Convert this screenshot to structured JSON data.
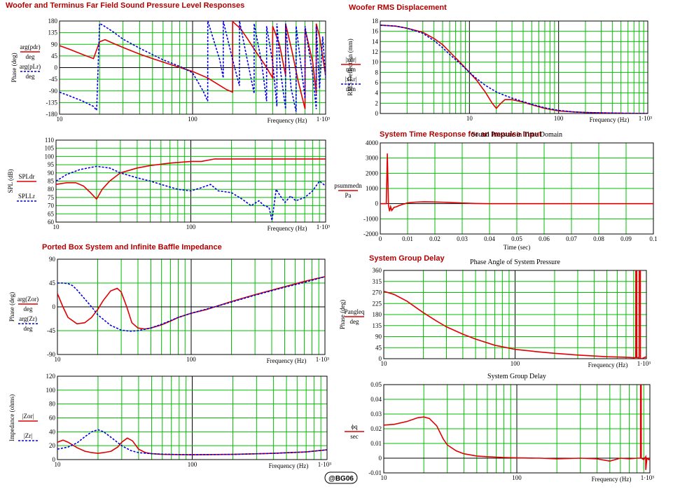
{
  "section_titles": {
    "spl": "Woofer and Terminus Far Field Sound Pressure Level Responses",
    "rms": "Woofer RMS Displacement",
    "time": "System Time Response for an Impulse Input",
    "impedance": "Ported Box System and Infinite Baffle Impedance",
    "delay": "System Group Delay"
  },
  "watermark": "@BG06",
  "colors": {
    "grid": "#00c000",
    "series_a": "#e00000",
    "series_b": "#0000e0",
    "title": "#b30000"
  },
  "chart_data": [
    {
      "id": "phase_spl",
      "type": "line",
      "xscale": "log",
      "xlim": [
        10,
        1000
      ],
      "ylim": [
        -180,
        180
      ],
      "xticks": [
        10,
        100,
        1000
      ],
      "xtick_labels": [
        "10",
        "100",
        "1·10³"
      ],
      "yticks": [
        -180,
        -135,
        -90,
        -45,
        0,
        45,
        90,
        135,
        180
      ],
      "xlabel": "Frequency (Hz)",
      "ylabel": "Phase (deg)",
      "legend": [
        {
          "num": "arg(pdr)",
          "den": "deg"
        },
        {
          "num": "arg(pLr)",
          "den": "deg"
        }
      ],
      "series": [
        {
          "x": [
            10,
            12,
            15,
            18,
            20,
            22,
            25,
            30,
            40,
            50,
            70,
            100,
            130,
            150,
            180,
            200,
            200.1,
            230,
            260,
            300,
            350,
            400,
            400.1,
            450,
            500,
            500.1,
            560,
            620,
            700,
            700.1,
            800,
            850,
            850.1,
            900,
            950,
            1000
          ],
          "y": [
            85,
            70,
            50,
            35,
            100,
            108,
            95,
            78,
            52,
            35,
            10,
            -15,
            -40,
            -60,
            -85,
            -95,
            178,
            150,
            110,
            60,
            10,
            -40,
            160,
            90,
            -30,
            170,
            60,
            -50,
            -160,
            150,
            20,
            -100,
            170,
            120,
            40,
            -30
          ]
        },
        {
          "x": [
            10,
            12,
            15,
            18,
            19,
            20,
            21,
            25,
            30,
            40,
            60,
            80,
            100,
            120,
            130,
            130.1,
            160,
            170,
            170.1,
            200,
            225,
            225.1,
            260,
            290,
            290.1,
            330,
            360,
            360.1,
            400,
            430,
            430.1,
            460,
            500,
            500.1,
            550,
            600,
            600.1,
            700,
            700.1,
            800,
            850,
            850.1,
            900,
            950,
            1000
          ],
          "y": [
            -95,
            -110,
            -130,
            -150,
            -165,
            170,
            165,
            140,
            110,
            75,
            30,
            5,
            -20,
            -90,
            -130,
            180,
            30,
            -40,
            180,
            30,
            -70,
            180,
            20,
            -100,
            170,
            20,
            -130,
            160,
            20,
            -150,
            170,
            -20,
            -160,
            170,
            -80,
            -170,
            160,
            -120,
            160,
            -30,
            -160,
            160,
            -80,
            120,
            -40
          ]
        }
      ]
    },
    {
      "id": "spl_db",
      "type": "line",
      "xscale": "log",
      "xlim": [
        10,
        1000
      ],
      "ylim": [
        60,
        110
      ],
      "xticks": [
        10,
        100,
        1000
      ],
      "xtick_labels": [
        "10",
        "100",
        "1·10³"
      ],
      "yticks": [
        60,
        65,
        70,
        75,
        80,
        85,
        90,
        95,
        100,
        105,
        110
      ],
      "xlabel": "Frequency (Hz)",
      "ylabel": "SPL (dB)",
      "legend": [
        {
          "num": "SPLdr",
          "den": ""
        },
        {
          "num": "SPLLr",
          "den": ""
        }
      ],
      "series": [
        {
          "x": [
            10,
            12,
            14,
            16,
            18,
            20,
            22,
            25,
            30,
            40,
            50,
            70,
            100,
            120,
            150,
            200,
            300,
            500,
            700,
            1000
          ],
          "y": [
            83,
            84,
            84,
            82,
            78,
            74,
            80,
            85,
            90,
            93,
            94.5,
            96,
            97,
            97,
            98.5,
            98.5,
            98.5,
            98.5,
            98.5,
            98.5
          ]
        },
        {
          "x": [
            10,
            12,
            15,
            20,
            25,
            30,
            40,
            50,
            60,
            80,
            100,
            120,
            140,
            160,
            200,
            240,
            280,
            320,
            350,
            380,
            400,
            430,
            460,
            500,
            550,
            600,
            700,
            800,
            900,
            1000
          ],
          "y": [
            85,
            89,
            92,
            94,
            93,
            90,
            87,
            85,
            83,
            80,
            79,
            81,
            83,
            79,
            78,
            74,
            70,
            73,
            70,
            69,
            61,
            80,
            76,
            72,
            76,
            73,
            75,
            79,
            85,
            82
          ]
        }
      ]
    },
    {
      "id": "rms_displacement",
      "type": "line",
      "xscale": "log",
      "xlim": [
        1,
        1000
      ],
      "ylim": [
        0,
        18
      ],
      "xticks": [
        10,
        100,
        1000
      ],
      "xtick_labels": [
        "10",
        "100",
        "1·10³"
      ],
      "yticks": [
        0,
        2,
        4,
        6,
        8,
        10,
        12,
        14,
        16,
        18
      ],
      "xlabel": "Frequency (Hz)",
      "ylabel": "RMS Deflection (mm)",
      "legend": [
        {
          "num": "|xdr|",
          "den": "mm"
        },
        {
          "num": "|xLr|",
          "den": "mm"
        }
      ],
      "series": [
        {
          "x": [
            1,
            1.5,
            2,
            3,
            4,
            5,
            6,
            8,
            10,
            12,
            15,
            18,
            20,
            22,
            25,
            30,
            40,
            50,
            70,
            100,
            150,
            200,
            300,
            500,
            1000
          ],
          "y": [
            17.2,
            17,
            16.6,
            15.8,
            14.6,
            13.4,
            12,
            9.8,
            8,
            6.5,
            4.2,
            2,
            1,
            1.8,
            2.7,
            2.7,
            2.2,
            1.7,
            1,
            0.5,
            0.3,
            0.2,
            0.12,
            0.05,
            0.02
          ]
        },
        {
          "x": [
            1,
            1.5,
            2,
            3,
            4,
            5,
            6,
            8,
            10,
            12,
            15,
            20,
            25,
            30,
            40,
            50,
            70,
            100,
            150,
            200,
            300,
            500,
            1000
          ],
          "y": [
            17.2,
            17,
            16.6,
            15.6,
            14.2,
            12.8,
            11.5,
            9.6,
            8,
            6.8,
            5.5,
            4.2,
            3.5,
            3,
            2.3,
            1.8,
            1.1,
            0.6,
            0.3,
            0.2,
            0.12,
            0.05,
            0.02
          ]
        }
      ]
    },
    {
      "id": "impulse_response",
      "type": "line",
      "xscale": "linear",
      "xlim": [
        0,
        0.1
      ],
      "ylim": [
        -2000,
        4000
      ],
      "xticks": [
        0,
        0.01,
        0.02,
        0.03,
        0.04,
        0.05,
        0.06,
        0.07,
        0.08,
        0.09,
        0.1
      ],
      "xtick_labels": [
        "0",
        "0.01",
        "0.02",
        "0.03",
        "0.04",
        "0.05",
        "0.06",
        "0.07",
        "0.08",
        "0.09",
        "0.1"
      ],
      "yticks": [
        -2000,
        -1000,
        0,
        1000,
        2000,
        3000,
        4000
      ],
      "title": "Sound Pressure in Time Domain",
      "xlabel": "Time (sec)",
      "ylabel": "",
      "legend": [
        {
          "num": "psummedn",
          "den": "Pa"
        }
      ],
      "series": [
        {
          "x": [
            0,
            0.0022,
            0.0026,
            0.003,
            0.0034,
            0.0038,
            0.0042,
            0.005,
            0.006,
            0.007,
            0.008,
            0.01,
            0.013,
            0.016,
            0.02,
            0.025,
            0.03,
            0.035,
            0.04,
            0.06,
            0.08,
            0.1
          ],
          "y": [
            0,
            0,
            3300,
            -100,
            -500,
            -200,
            -450,
            -250,
            -200,
            -120,
            -60,
            50,
            100,
            120,
            110,
            80,
            40,
            10,
            0,
            0,
            0,
            0
          ]
        }
      ]
    },
    {
      "id": "impedance_phase",
      "type": "line",
      "xscale": "log",
      "xlim": [
        10,
        1000
      ],
      "ylim": [
        -90,
        90
      ],
      "xticks": [
        10,
        100,
        1000
      ],
      "xtick_labels": [
        "10",
        "100",
        "1·10³"
      ],
      "yticks": [
        -90,
        -45,
        0,
        45,
        90
      ],
      "xlabel": "Frequency (Hz)",
      "ylabel": "Phase (deg)",
      "legend": [
        {
          "num": "arg(Zor)",
          "den": "deg"
        },
        {
          "num": "arg(Zr)",
          "den": "deg"
        }
      ],
      "series": [
        {
          "x": [
            10,
            11,
            12,
            14,
            16,
            18,
            20,
            22,
            25,
            28,
            30,
            33,
            36,
            40,
            45,
            50,
            60,
            70,
            80,
            100,
            130,
            150,
            200,
            300,
            500,
            700,
            1000
          ],
          "y": [
            25,
            0,
            -20,
            -32,
            -30,
            -20,
            -5,
            12,
            30,
            35,
            28,
            0,
            -30,
            -40,
            -42,
            -40,
            -34,
            -27,
            -20,
            -12,
            -5,
            0,
            10,
            23,
            38,
            48,
            57
          ]
        },
        {
          "x": [
            10,
            11,
            12,
            13,
            14,
            16,
            18,
            20,
            25,
            30,
            35,
            40,
            50,
            60,
            80,
            100,
            150,
            200,
            300,
            500,
            700,
            1000
          ],
          "y": [
            45,
            45,
            44,
            40,
            32,
            15,
            0,
            -15,
            -35,
            -44,
            -46,
            -45,
            -40,
            -33,
            -20,
            -12,
            0,
            9,
            22,
            37,
            46,
            57
          ]
        }
      ]
    },
    {
      "id": "impedance_magnitude",
      "type": "line",
      "xscale": "log",
      "xlim": [
        10,
        1000
      ],
      "ylim": [
        0,
        120
      ],
      "xticks": [
        10,
        100,
        1000
      ],
      "xtick_labels": [
        "10",
        "100",
        "1·10³"
      ],
      "yticks": [
        0,
        20,
        40,
        60,
        80,
        100,
        120
      ],
      "xlabel": "Frequency (Hz)",
      "ylabel": "Impedance (ohms)",
      "legend": [
        {
          "num": "|Zor|",
          "den": ""
        },
        {
          "num": "|Zr|",
          "den": ""
        }
      ],
      "series": [
        {
          "x": [
            10,
            11,
            12,
            14,
            16,
            18,
            20,
            22,
            25,
            28,
            30,
            33,
            36,
            40,
            45,
            50,
            60,
            80,
            100,
            200,
            400,
            700,
            1000
          ],
          "y": [
            25,
            28,
            25,
            17,
            12,
            10,
            9,
            10,
            12,
            18,
            25,
            31,
            27,
            15,
            10,
            8.5,
            7.5,
            7.2,
            7,
            7.5,
            9,
            11,
            14
          ]
        },
        {
          "x": [
            10,
            12,
            14,
            16,
            18,
            20,
            22,
            25,
            30,
            35,
            40,
            50,
            60,
            80,
            100,
            200,
            400,
            700,
            1000
          ],
          "y": [
            15,
            18,
            24,
            33,
            40,
            43,
            40,
            32,
            20,
            13,
            10,
            8.5,
            7.8,
            7.3,
            7,
            7.5,
            9,
            11,
            14
          ]
        }
      ]
    },
    {
      "id": "pressure_phase",
      "type": "line",
      "xscale": "log",
      "xlim": [
        10,
        1000
      ],
      "ylim": [
        0,
        360
      ],
      "xticks": [
        10,
        100,
        1000
      ],
      "xtick_labels": [
        "10",
        "100",
        "1·10³"
      ],
      "yticks": [
        0,
        45,
        90,
        135,
        180,
        225,
        270,
        315,
        360
      ],
      "title": "Phase Angle of System Pressure",
      "xlabel": "Frequency (Hz)",
      "ylabel": "Phase (deg)",
      "legend": [
        {
          "num": "Pangleq",
          "den": "deg"
        }
      ],
      "series": [
        {
          "x": [
            10,
            12,
            15,
            18,
            20,
            25,
            30,
            40,
            50,
            70,
            100,
            150,
            200,
            300,
            500,
            700,
            800,
            830,
            831,
            845,
            846,
            880,
            881,
            900,
            901,
            920,
            950,
            1000
          ],
          "y": [
            275,
            262,
            235,
            205,
            188,
            155,
            130,
            100,
            80,
            55,
            38,
            28,
            22,
            15,
            8,
            6,
            4,
            5,
            360,
            360,
            5,
            4,
            360,
            360,
            2,
            0,
            3,
            8
          ]
        }
      ]
    },
    {
      "id": "group_delay",
      "type": "line",
      "xscale": "log",
      "xlim": [
        10,
        1000
      ],
      "ylim": [
        -0.01,
        0.05
      ],
      "xticks": [
        10,
        100,
        1000
      ],
      "xtick_labels": [
        "10",
        "100",
        "1·10³"
      ],
      "yticks": [
        -0.01,
        0,
        0.01,
        0.02,
        0.03,
        0.04,
        0.05
      ],
      "title": "System Group Delay",
      "xlabel": "Frequency (Hz)",
      "ylabel": "",
      "legend": [
        {
          "num": "ϕq",
          "den": "sec"
        }
      ],
      "series": [
        {
          "x": [
            10,
            12,
            15,
            18,
            20,
            22,
            25,
            28,
            30,
            35,
            40,
            50,
            60,
            80,
            100,
            150,
            200,
            300,
            400,
            500,
            600,
            700,
            800,
            850,
            851,
            860,
            861,
            900,
            930,
            931,
            950,
            980,
            1000
          ],
          "y": [
            0.0225,
            0.023,
            0.025,
            0.0275,
            0.028,
            0.027,
            0.022,
            0.013,
            0.009,
            0.005,
            0.003,
            0.0015,
            0.001,
            0.0005,
            0.0002,
            0,
            -0.0005,
            0,
            -0.0005,
            -0.002,
            0,
            -0.0005,
            0,
            0,
            0.05,
            0.05,
            0,
            -0.001,
            0.001,
            -0.008,
            0,
            -0.001,
            0
          ]
        }
      ]
    }
  ]
}
